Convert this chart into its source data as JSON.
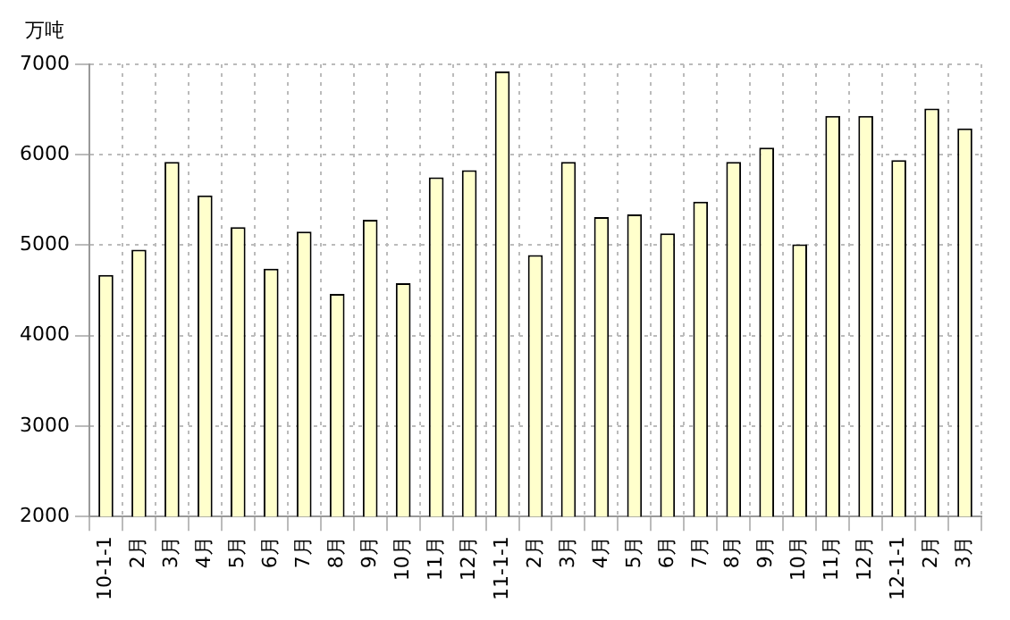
{
  "chart_data": {
    "type": "bar",
    "ylabel": "万吨",
    "categories": [
      "10-1-1",
      "2月",
      "3月",
      "4月",
      "5月",
      "6月",
      "7月",
      "8月",
      "9月",
      "10月",
      "11月",
      "12月",
      "11-1-1",
      "2月",
      "3月",
      "4月",
      "5月",
      "6月",
      "7月",
      "8月",
      "9月",
      "10月",
      "11月",
      "12月",
      "12-1-1",
      "2月",
      "3月"
    ],
    "values": [
      4670,
      4950,
      5920,
      5550,
      5200,
      4740,
      5150,
      4460,
      5280,
      4580,
      5750,
      5830,
      6920,
      4890,
      5920,
      5310,
      5340,
      5130,
      5480,
      5920,
      6080,
      5010,
      6430,
      6430,
      5940,
      6510,
      6290
    ],
    "color": "#ffffcc",
    "ylim": [
      2000,
      7000
    ],
    "yticks": [
      2000,
      3000,
      4000,
      5000,
      6000,
      7000
    ],
    "grid": true,
    "legend": false
  }
}
